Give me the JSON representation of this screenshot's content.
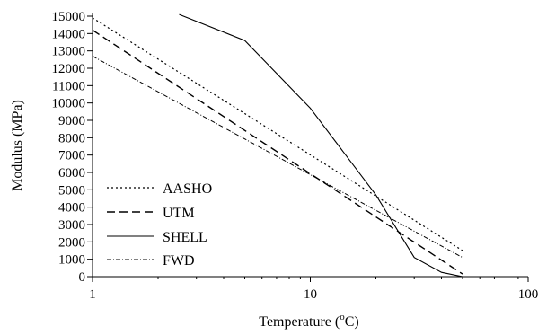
{
  "chart_data": {
    "type": "line",
    "title": "",
    "xlabel": "Temperature (°C)",
    "xlabel_text": "Temperature (",
    "xlabel_degree": "o",
    "xlabel_unit": "C)",
    "ylabel": "Modulus (MPa)",
    "x_scale": "log",
    "xlim": [
      1,
      100
    ],
    "ylim": [
      0,
      15000
    ],
    "x_ticks": [
      1,
      10,
      100
    ],
    "x_tick_labels": [
      "1",
      "10",
      "100"
    ],
    "y_ticks": [
      0,
      1000,
      2000,
      3000,
      4000,
      5000,
      6000,
      7000,
      8000,
      9000,
      10000,
      11000,
      12000,
      13000,
      14000,
      15000
    ],
    "y_tick_labels": [
      "0",
      "1000",
      "2000",
      "3000",
      "4000",
      "5000",
      "6000",
      "7000",
      "8000",
      "9000",
      "10000",
      "11000",
      "12000",
      "13000",
      "14000",
      "15000"
    ],
    "grid": false,
    "legend_position": "bottom-left",
    "series": [
      {
        "name": "AASHO",
        "style": "dotted",
        "x": [
          1,
          50
        ],
        "y": [
          14900,
          1500
        ]
      },
      {
        "name": "UTM",
        "style": "dashed",
        "x": [
          1,
          50
        ],
        "y": [
          14200,
          150
        ]
      },
      {
        "name": "SHELL",
        "style": "solid",
        "x": [
          2.5,
          5,
          10,
          20,
          30,
          40,
          50
        ],
        "y": [
          15100,
          13600,
          9700,
          4700,
          1100,
          250,
          0
        ]
      },
      {
        "name": "FWD",
        "style": "dash-dot",
        "x": [
          1,
          50
        ],
        "y": [
          12700,
          1100
        ]
      }
    ]
  }
}
